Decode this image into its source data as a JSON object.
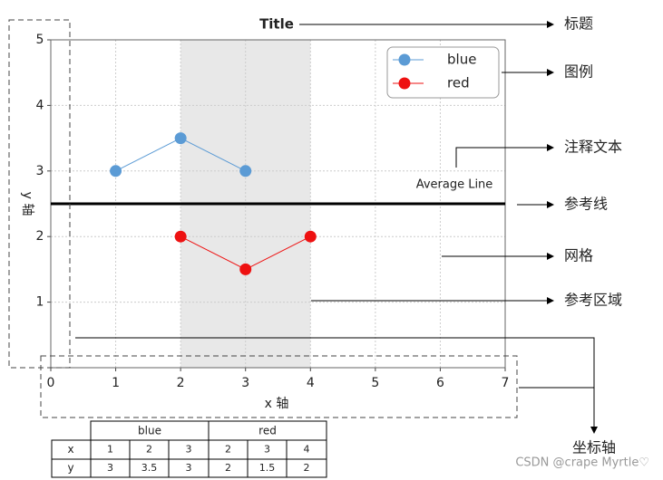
{
  "chart_data": {
    "type": "line",
    "title": "Title",
    "x_label": "x 轴",
    "y_label": "y 轴",
    "series": [
      {
        "name": "blue",
        "color": "#5b9bd5",
        "x": [
          1,
          2,
          3
        ],
        "values": [
          3,
          3.5,
          3
        ]
      },
      {
        "name": "red",
        "color": "#ee1111",
        "x": [
          2,
          3,
          4
        ],
        "values": [
          2,
          1.5,
          2
        ]
      }
    ],
    "xlim": [
      0,
      7
    ],
    "ylim": [
      0,
      5
    ],
    "xticks": [
      0,
      1,
      2,
      3,
      4,
      5,
      6,
      7
    ],
    "yticks": [
      1,
      2,
      3,
      4,
      5
    ],
    "grid": true,
    "legend": "upper right",
    "reference_line": {
      "y": 2.5,
      "label": "Average Line"
    },
    "reference_region": [
      2,
      4
    ],
    "callouts": [
      "标题",
      "图例",
      "注释文本",
      "参考线",
      "网格",
      "参考区域",
      "坐标轴"
    ]
  },
  "table": {
    "row_labels": [
      "x",
      "y"
    ]
  },
  "watermark": "CSDN @crape Myrtle♡"
}
